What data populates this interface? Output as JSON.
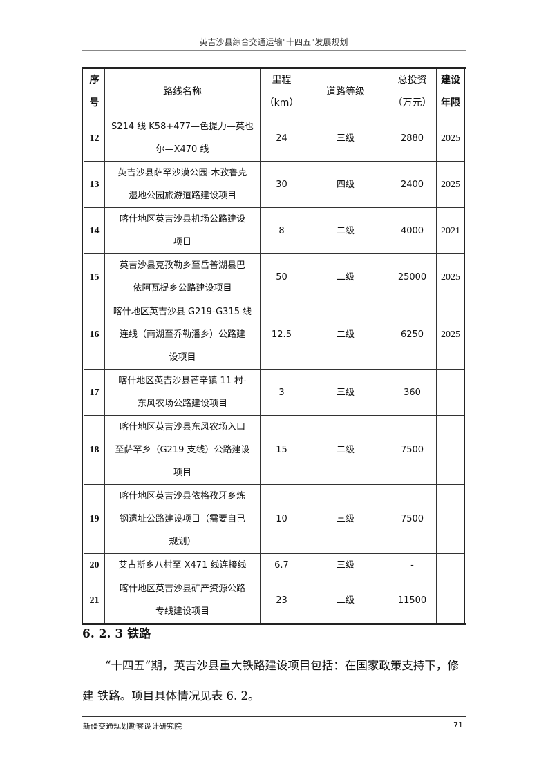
{
  "header": {
    "title": "英吉沙县综合交通运输\"十四五\"发展规划"
  },
  "table": {
    "columns": [
      [
        "序",
        "号"
      ],
      [
        "路线名称"
      ],
      [
        "里程",
        "（km）"
      ],
      [
        "道路等级"
      ],
      [
        "总投资",
        "（万元）"
      ],
      [
        "建设",
        "年限"
      ]
    ],
    "rows": [
      {
        "no": "12",
        "name": [
          "S214 线 K58+477—色提力—英也",
          "尔—X470 线"
        ],
        "km": "24",
        "grade": "三级",
        "invest": "2880",
        "year": "2025"
      },
      {
        "no": "13",
        "name": [
          "英吉沙县萨罕沙漠公园-木孜鲁克",
          "湿地公园旅游道路建设项目"
        ],
        "km": "30",
        "grade": "四级",
        "invest": "2400",
        "year": "2025"
      },
      {
        "no": "14",
        "name": [
          "喀什地区英吉沙县机场公路建设",
          "项目"
        ],
        "km": "8",
        "grade": "二级",
        "invest": "4000",
        "year": "2021"
      },
      {
        "no": "15",
        "name": [
          "英吉沙县克孜勒乡至岳普湖县巴",
          "依阿瓦提乡公路建设项目"
        ],
        "km": "50",
        "grade": "二级",
        "invest": "25000",
        "year": "2025"
      },
      {
        "no": "16",
        "name": [
          "喀什地区英吉沙县 G219-G315 线",
          "连线（南湖至乔勒潘乡）公路建",
          "设项目"
        ],
        "km": "12.5",
        "grade": "二级",
        "invest": "6250",
        "year": "2025"
      },
      {
        "no": "17",
        "name": [
          "喀什地区英吉沙县芒辛镇 11 村-",
          "东风农场公路建设项目"
        ],
        "km": "3",
        "grade": "三级",
        "invest": "360",
        "year": ""
      },
      {
        "no": "18",
        "name": [
          "喀什地区英吉沙县东风农场入口",
          "至萨罕乡（G219 支线）公路建设",
          "项目"
        ],
        "km": "15",
        "grade": "二级",
        "invest": "7500",
        "year": ""
      },
      {
        "no": "19",
        "name": [
          "喀什地区英吉沙县依格孜牙乡炼",
          "钢遗址公路建设项目（需要自己",
          "规划）"
        ],
        "km": "10",
        "grade": "三级",
        "invest": "7500",
        "year": ""
      },
      {
        "no": "20",
        "name": [
          "艾古斯乡八村至 X471 线连接线"
        ],
        "km": "6.7",
        "grade": "三级",
        "invest": "-",
        "year": ""
      },
      {
        "no": "21",
        "name": [
          "喀什地区英吉沙县矿产资源公路",
          "专线建设项目"
        ],
        "km": "23",
        "grade": "二级",
        "invest": "11500",
        "year": ""
      }
    ]
  },
  "section": {
    "heading": "6. 2. 3 铁路",
    "paragraph": "“十四五”期，英吉沙县重大铁路建设项目包括：在国家政策支持下，修建 铁路。项目具体情况见表 6. 2。"
  },
  "footer": {
    "org": "新疆交通规划勘察设计研究院",
    "page": "71"
  }
}
